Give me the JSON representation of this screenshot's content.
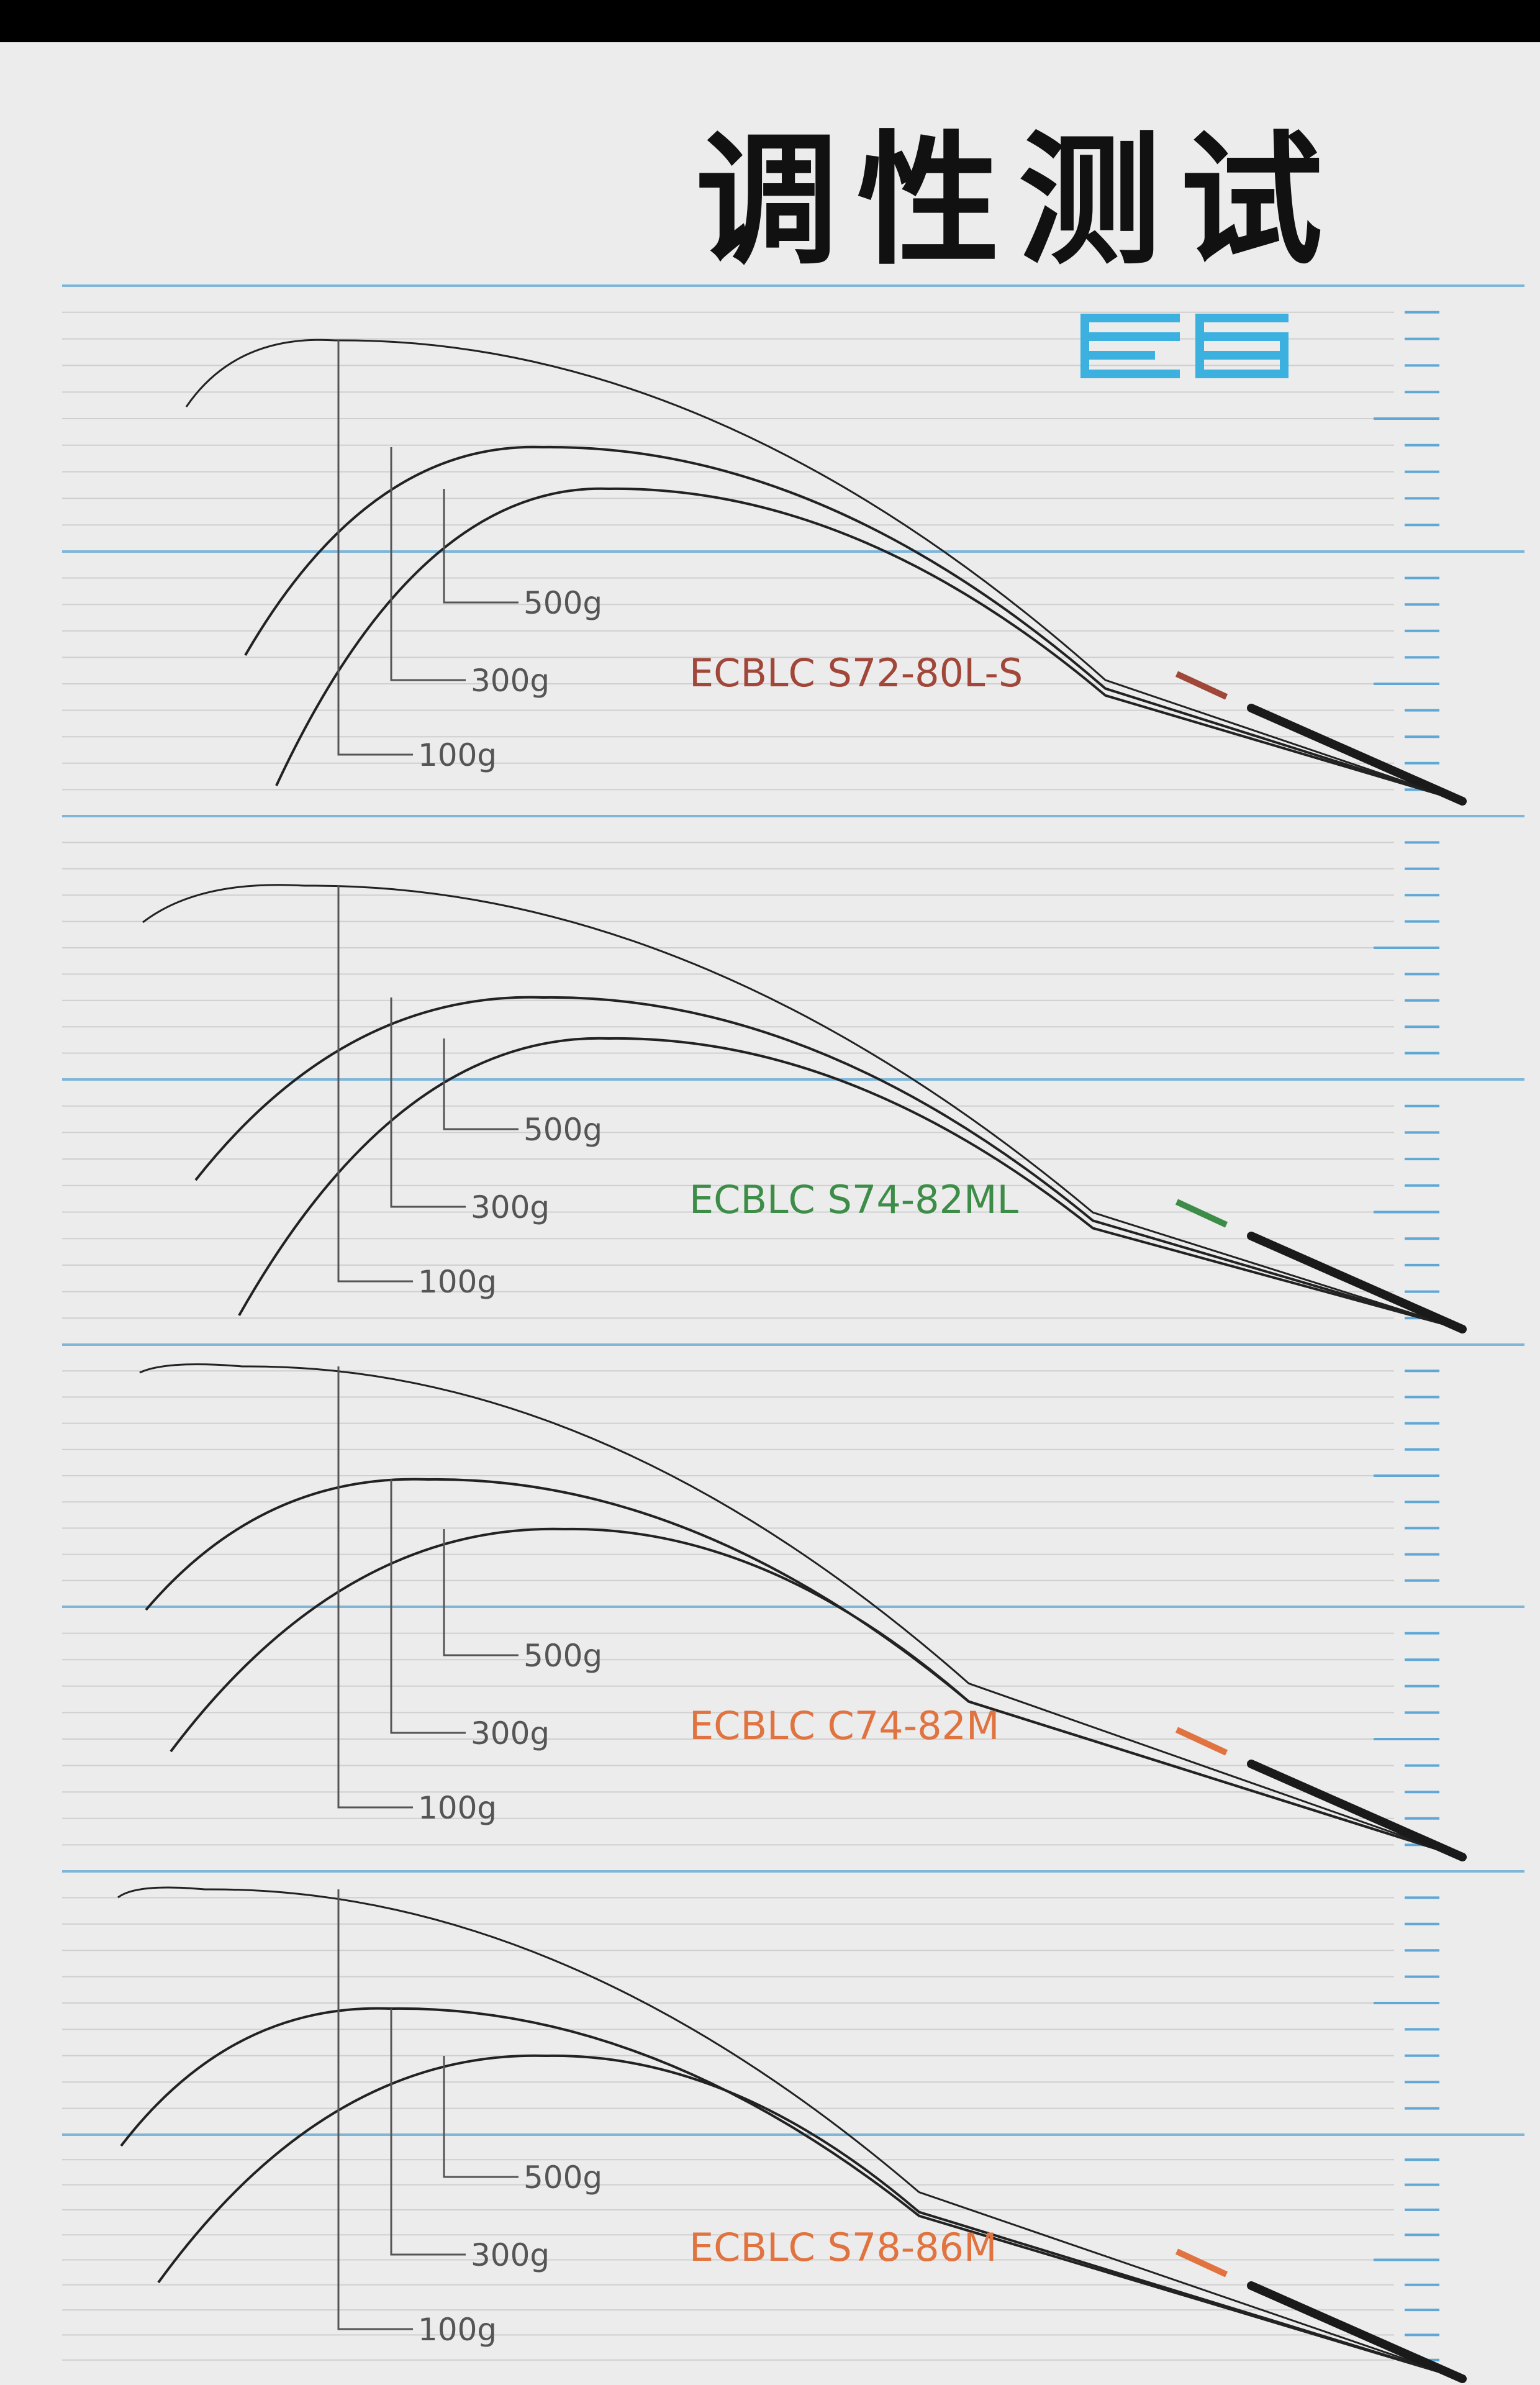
{
  "title": "调性测试",
  "colors": {
    "background": "#ececec",
    "grid_line": "#cfcfcf",
    "major_line": "#7fb6d8",
    "tick": "#5fa8d6",
    "curve": "#222222",
    "weight_marker": "#555555"
  },
  "logo_icon": "brand-logo-icon",
  "weight_labels": [
    "100g",
    "300g",
    "500g"
  ],
  "panels": [
    {
      "model": "ECBLC S72-80L-S",
      "accent": "#a0473a"
    },
    {
      "model": "ECBLC S74-82ML",
      "accent": "#3d8d48"
    },
    {
      "model": "ECBLC C74-82M",
      "accent": "#e0733f"
    },
    {
      "model": "ECBLC S78-86M",
      "accent": "#e0733f"
    }
  ]
}
